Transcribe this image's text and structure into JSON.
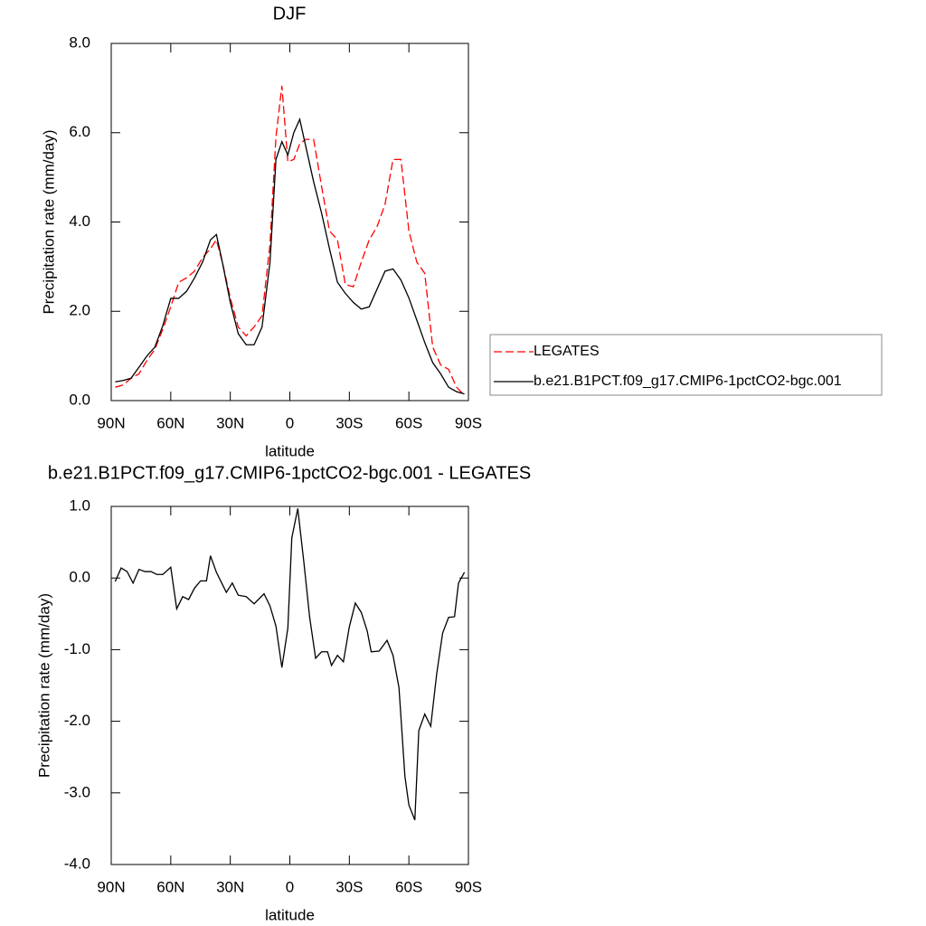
{
  "chart_data": [
    {
      "type": "line",
      "title": "DJF",
      "xlabel": "latitude",
      "ylabel": "Precipitation rate (mm/day)",
      "x": [
        88,
        84,
        80,
        76,
        72,
        68,
        64,
        60,
        56,
        52,
        48,
        44,
        40,
        37,
        34,
        30,
        26,
        22,
        18,
        14,
        10,
        7,
        4,
        1,
        -2,
        -5,
        -8,
        -12,
        -16,
        -20,
        -24,
        -28,
        -32,
        -36,
        -40,
        -44,
        -48,
        -52,
        -56,
        -60,
        -64,
        -68,
        -72,
        -76,
        -80,
        -84,
        -88
      ],
      "series": [
        {
          "name": "LEGATES",
          "color": "#ff0000",
          "style": "dashed",
          "values": [
            0.3,
            0.35,
            0.5,
            0.6,
            0.9,
            1.15,
            1.6,
            2.1,
            2.65,
            2.75,
            2.9,
            3.2,
            3.4,
            3.6,
            3.1,
            2.3,
            1.65,
            1.45,
            1.65,
            1.9,
            3.5,
            5.9,
            7.05,
            5.35,
            5.4,
            5.75,
            5.85,
            5.85,
            4.8,
            3.8,
            3.6,
            2.6,
            2.55,
            3.1,
            3.6,
            3.9,
            4.4,
            5.4,
            5.4,
            3.8,
            3.1,
            2.85,
            1.2,
            0.8,
            0.7,
            0.3,
            0.12
          ]
        },
        {
          "name": "b.e21.B1PCT.f09_g17.CMIP6-1pctCO2-bgc.001",
          "color": "#000000",
          "style": "solid",
          "values": [
            0.42,
            0.45,
            0.5,
            0.75,
            1.0,
            1.2,
            1.68,
            2.29,
            2.29,
            2.45,
            2.75,
            3.1,
            3.6,
            3.72,
            3.1,
            2.2,
            1.5,
            1.25,
            1.25,
            1.65,
            3.1,
            5.4,
            5.8,
            5.5,
            6.0,
            6.3,
            5.7,
            4.9,
            4.2,
            3.4,
            2.65,
            2.4,
            2.2,
            2.05,
            2.1,
            2.5,
            2.9,
            2.95,
            2.7,
            2.3,
            1.8,
            1.3,
            0.85,
            0.6,
            0.3,
            0.2,
            0.15
          ]
        }
      ],
      "xlim": [
        90,
        -90
      ],
      "xticks": [
        {
          "value": 90,
          "label": "90N"
        },
        {
          "value": 60,
          "label": "60N"
        },
        {
          "value": 30,
          "label": "30N"
        },
        0,
        {
          "value": -30,
          "label": "30S"
        },
        {
          "value": -60,
          "label": "60S"
        },
        {
          "value": -90,
          "label": "90S"
        }
      ],
      "ylim": [
        0,
        8
      ],
      "yticks": [
        {
          "value": 0,
          "label": "0.0"
        },
        {
          "value": 2,
          "label": "2.0"
        },
        {
          "value": 4,
          "label": "4.0"
        },
        {
          "value": 6,
          "label": "6.0"
        },
        {
          "value": 8,
          "label": "8.0"
        }
      ],
      "legend": "right"
    },
    {
      "type": "line",
      "title": "b.e21.B1PCT.f09_g17.CMIP6-1pctCO2-bgc.001 - LEGATES",
      "xlabel": "latitude",
      "ylabel": "Precipitation rate (mm/day)",
      "x": [
        88,
        85,
        82,
        79,
        76,
        73,
        70,
        67,
        64,
        60,
        57,
        54,
        51,
        48,
        45,
        42,
        40,
        37,
        32,
        29,
        26,
        22,
        18,
        13,
        10,
        7,
        4,
        1,
        -1,
        -4,
        -7,
        -10,
        -13,
        -16,
        -19,
        -21,
        -24,
        -27,
        -30,
        -33,
        -36,
        -39,
        -41,
        -45,
        -49,
        -52,
        -55,
        -58,
        -60,
        -63,
        -65,
        -68,
        -71,
        -74,
        -77,
        -80,
        -83,
        -85,
        -88
      ],
      "series": [
        {
          "name": "b.e21.B1PCT.f09_g17.CMIP6-1pctCO2-bgc.001 - LEGATES",
          "color": "#000000",
          "style": "solid",
          "values": [
            -0.05,
            0.14,
            0.09,
            -0.07,
            0.12,
            0.09,
            0.09,
            0.05,
            0.05,
            0.15,
            -0.43,
            -0.26,
            -0.3,
            -0.14,
            -0.04,
            -0.04,
            0.31,
            0.08,
            -0.2,
            -0.07,
            -0.24,
            -0.26,
            -0.36,
            -0.22,
            -0.39,
            -0.67,
            -1.25,
            -0.7,
            0.56,
            0.97,
            0.24,
            -0.55,
            -1.12,
            -1.03,
            -1.03,
            -1.22,
            -1.08,
            -1.17,
            -0.68,
            -0.35,
            -0.48,
            -0.74,
            -1.03,
            -1.02,
            -0.87,
            -1.08,
            -1.53,
            -2.77,
            -3.17,
            -3.38,
            -2.13,
            -1.9,
            -2.07,
            -1.34,
            -0.77,
            -0.55,
            -0.54,
            -0.07,
            0.08
          ]
        }
      ],
      "xlim": [
        90,
        -90
      ],
      "xticks": [
        {
          "value": 90,
          "label": "90N"
        },
        {
          "value": 60,
          "label": "60N"
        },
        {
          "value": 30,
          "label": "30N"
        },
        0,
        {
          "value": -30,
          "label": "30S"
        },
        {
          "value": -60,
          "label": "60S"
        },
        {
          "value": -90,
          "label": "90S"
        }
      ],
      "ylim": [
        -4,
        1
      ],
      "yticks": [
        {
          "value": -4,
          "label": "-4.0"
        },
        {
          "value": -3,
          "label": "-3.0"
        },
        {
          "value": -2,
          "label": "-2.0"
        },
        {
          "value": -1,
          "label": "-1.0"
        },
        {
          "value": 0,
          "label": "0.0"
        },
        {
          "value": 1,
          "label": "1.0"
        }
      ]
    }
  ]
}
